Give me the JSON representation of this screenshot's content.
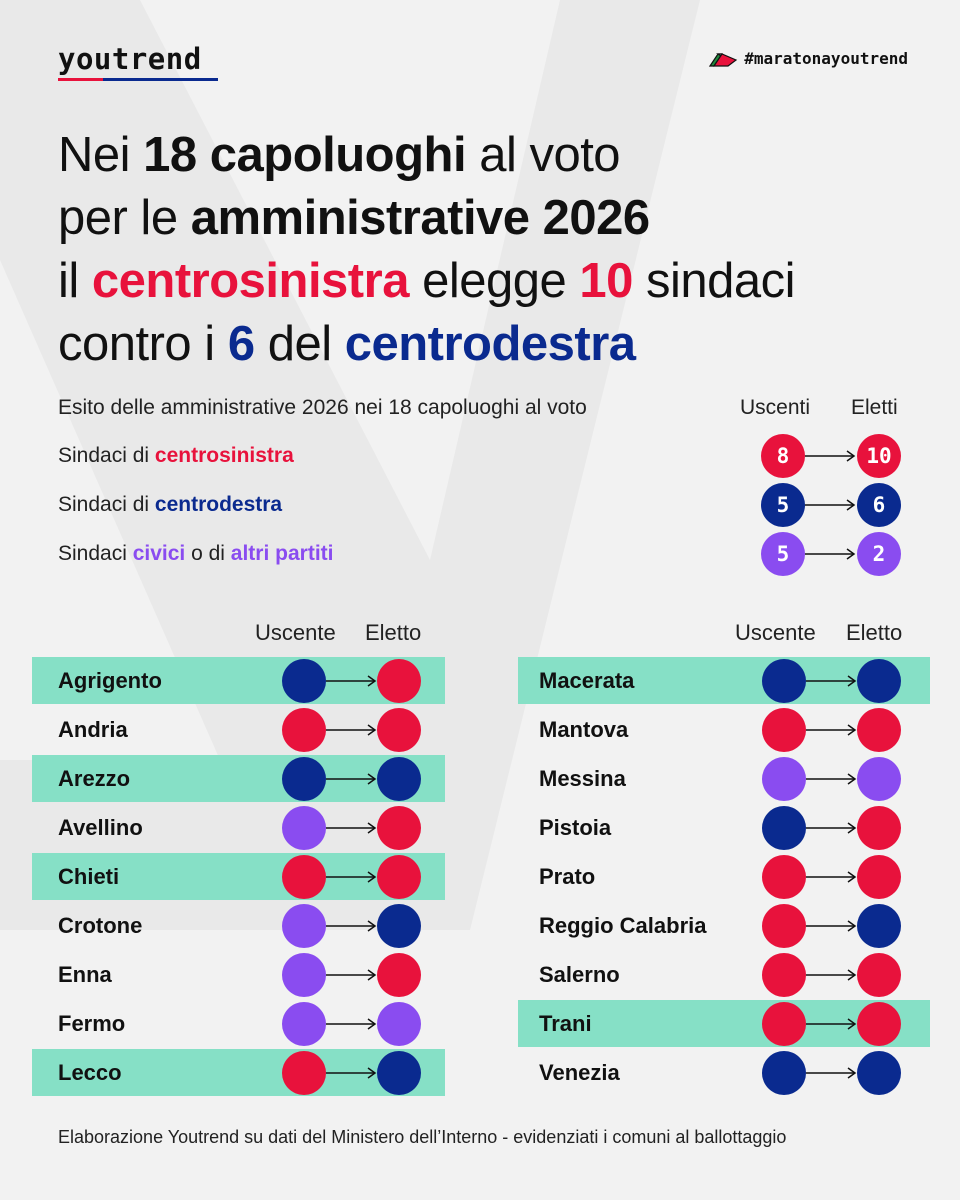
{
  "brand": {
    "logo": "youtrend",
    "hashtag": "#maratonayoutrend",
    "flag_colors": [
      "#1e8a3c",
      "#ffffff",
      "#e8123c"
    ]
  },
  "colors": {
    "centrosinistra": "#e8123c",
    "centrodestra": "#0a2a8f",
    "civici": "#8a4cf0",
    "highlight": "#86e0c6"
  },
  "headline": {
    "l1a": "Nei ",
    "l1b": "18 capoluoghi",
    "l1c": " al voto",
    "l2a": "per le ",
    "l2b": "amministrative 2026",
    "l3a": "il ",
    "l3b": "centrosinistra",
    "l3c": " elegge ",
    "l3d": "10",
    "l3e": " sindaci",
    "l4a": "contro i ",
    "l4b": "6",
    "l4c": " del ",
    "l4d": "centrodestra"
  },
  "summary": {
    "title": "Esito delle amministrative 2026 nei 18 capoluoghi al voto",
    "col_uscenti": "Uscenti",
    "col_eletti": "Eletti",
    "cs": {
      "a": "Sindaci di ",
      "b": "centrosinistra",
      "uscenti": "8",
      "eletti": "10"
    },
    "cd": {
      "a": "Sindaci di ",
      "b": "centrodestra",
      "uscenti": "5",
      "eletti": "6"
    },
    "civ": {
      "a": "Sindaci ",
      "b": "civici",
      "c": " o di ",
      "d": "altri partiti",
      "uscenti": "5",
      "eletti": "2"
    }
  },
  "table": {
    "col_uscente": "Uscente",
    "col_eletto": "Eletto",
    "left": [
      {
        "city": "Agrigento",
        "uscente": "cd",
        "eletto": "cs",
        "ballottaggio": true
      },
      {
        "city": "Andria",
        "uscente": "cs",
        "eletto": "cs",
        "ballottaggio": false
      },
      {
        "city": "Arezzo",
        "uscente": "cd",
        "eletto": "cd",
        "ballottaggio": true
      },
      {
        "city": "Avellino",
        "uscente": "civ",
        "eletto": "cs",
        "ballottaggio": false
      },
      {
        "city": "Chieti",
        "uscente": "cs",
        "eletto": "cs",
        "ballottaggio": true
      },
      {
        "city": "Crotone",
        "uscente": "civ",
        "eletto": "cd",
        "ballottaggio": false
      },
      {
        "city": "Enna",
        "uscente": "civ",
        "eletto": "cs",
        "ballottaggio": false
      },
      {
        "city": "Fermo",
        "uscente": "civ",
        "eletto": "civ",
        "ballottaggio": false
      },
      {
        "city": "Lecco",
        "uscente": "cs",
        "eletto": "cd",
        "ballottaggio": true
      }
    ],
    "right": [
      {
        "city": "Macerata",
        "uscente": "cd",
        "eletto": "cd",
        "ballottaggio": true
      },
      {
        "city": "Mantova",
        "uscente": "cs",
        "eletto": "cs",
        "ballottaggio": false
      },
      {
        "city": "Messina",
        "uscente": "civ",
        "eletto": "civ",
        "ballottaggio": false
      },
      {
        "city": "Pistoia",
        "uscente": "cd",
        "eletto": "cs",
        "ballottaggio": false
      },
      {
        "city": "Prato",
        "uscente": "cs",
        "eletto": "cs",
        "ballottaggio": false
      },
      {
        "city": "Reggio Calabria",
        "uscente": "cs",
        "eletto": "cd",
        "ballottaggio": false
      },
      {
        "city": "Salerno",
        "uscente": "cs",
        "eletto": "cs",
        "ballottaggio": false
      },
      {
        "city": "Trani",
        "uscente": "cs",
        "eletto": "cs",
        "ballottaggio": true
      },
      {
        "city": "Venezia",
        "uscente": "cd",
        "eletto": "cd",
        "ballottaggio": false
      }
    ]
  },
  "footer": "Elaborazione Youtrend su dati del Ministero dell’Interno - evidenziati i comuni al ballottaggio"
}
